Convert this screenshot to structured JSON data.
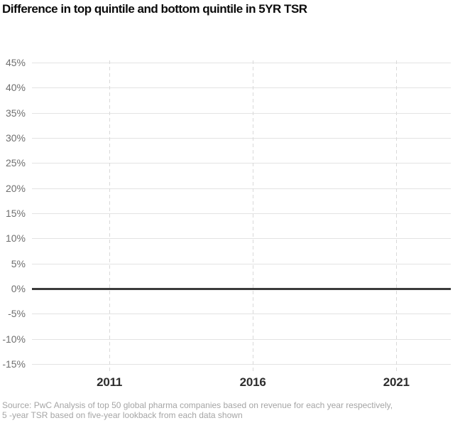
{
  "header": {
    "title": "Difference in top quintile and bottom quintile in 5YR TSR"
  },
  "chart_data": {
    "type": "line",
    "title": "Difference in top quintile and bottom quintile in 5YR TSR",
    "xlabel": "",
    "ylabel": "",
    "x": [
      2011,
      2016,
      2021
    ],
    "x_tick_labels": [
      "2011",
      "2016",
      "2021"
    ],
    "xlim": [
      2008.3,
      2022.9
    ],
    "y_ticks": [
      45,
      40,
      35,
      30,
      25,
      20,
      15,
      10,
      5,
      0,
      -5,
      -10,
      -15
    ],
    "y_tick_labels": [
      "45%",
      "40%",
      "35%",
      "30%",
      "25%",
      "20%",
      "15%",
      "10%",
      "5%",
      "0%",
      "-5%",
      "-10%",
      "-15%"
    ],
    "ylim": [
      -15,
      45
    ],
    "series": [],
    "grid": true,
    "x_grid_style": "dashed",
    "zero_baseline": true,
    "legend_position": "none"
  },
  "source": {
    "line1": "Source: PwC Analysis of top 50 global pharma companies based on revenue for each year respectively,",
    "line2": "5 -year TSR based on five-year lookback from each data shown"
  },
  "colors": {
    "background": "#ffffff",
    "title": "#0b0b0b",
    "grid": "#e3e3e3",
    "tick_dash": "#d9d9d9",
    "zero_line": "#3a3a3a",
    "y_label": "#6f6f6f",
    "x_label": "#2d2d2d",
    "source": "#a5a5a5"
  }
}
